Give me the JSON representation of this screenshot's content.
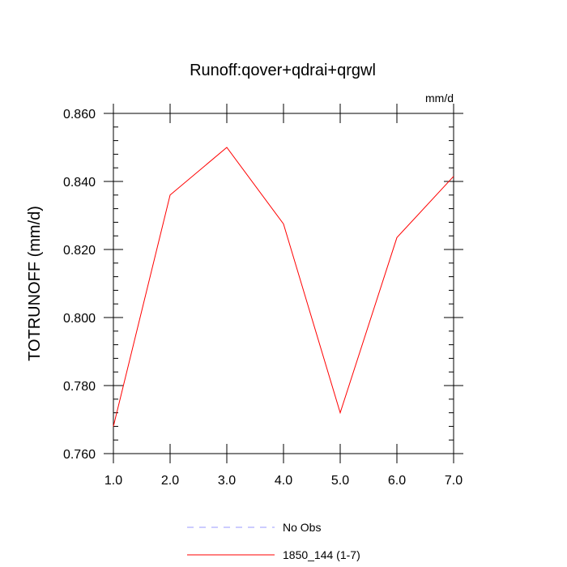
{
  "chart_data": {
    "type": "line",
    "title": "Runoff:qover+qdrai+qrgwl",
    "units": "mm/d",
    "ylabel": "TOTRUNOFF  (mm/d)",
    "xlabel": "",
    "xlim": [
      1.0,
      7.0
    ],
    "ylim": [
      0.76,
      0.86
    ],
    "xticks": [
      "1.0",
      "2.0",
      "3.0",
      "4.0",
      "5.0",
      "6.0",
      "7.0"
    ],
    "yticks": [
      "0.760",
      "0.780",
      "0.800",
      "0.820",
      "0.840",
      "0.860"
    ],
    "x": [
      1,
      2,
      3,
      4,
      5,
      6,
      7
    ],
    "series": [
      {
        "name": "1850_144 (1-7)",
        "color": "#ff0000",
        "style": "solid",
        "values": [
          0.768,
          0.836,
          0.85,
          0.8275,
          0.772,
          0.8235,
          0.8415
        ]
      }
    ],
    "legend": [
      {
        "label": "No Obs",
        "color": "#9999ff",
        "style": "dashed"
      },
      {
        "label": "1850_144 (1-7)",
        "color": "#ff0000",
        "style": "solid"
      }
    ],
    "legend_position": "bottom",
    "grid": false
  }
}
